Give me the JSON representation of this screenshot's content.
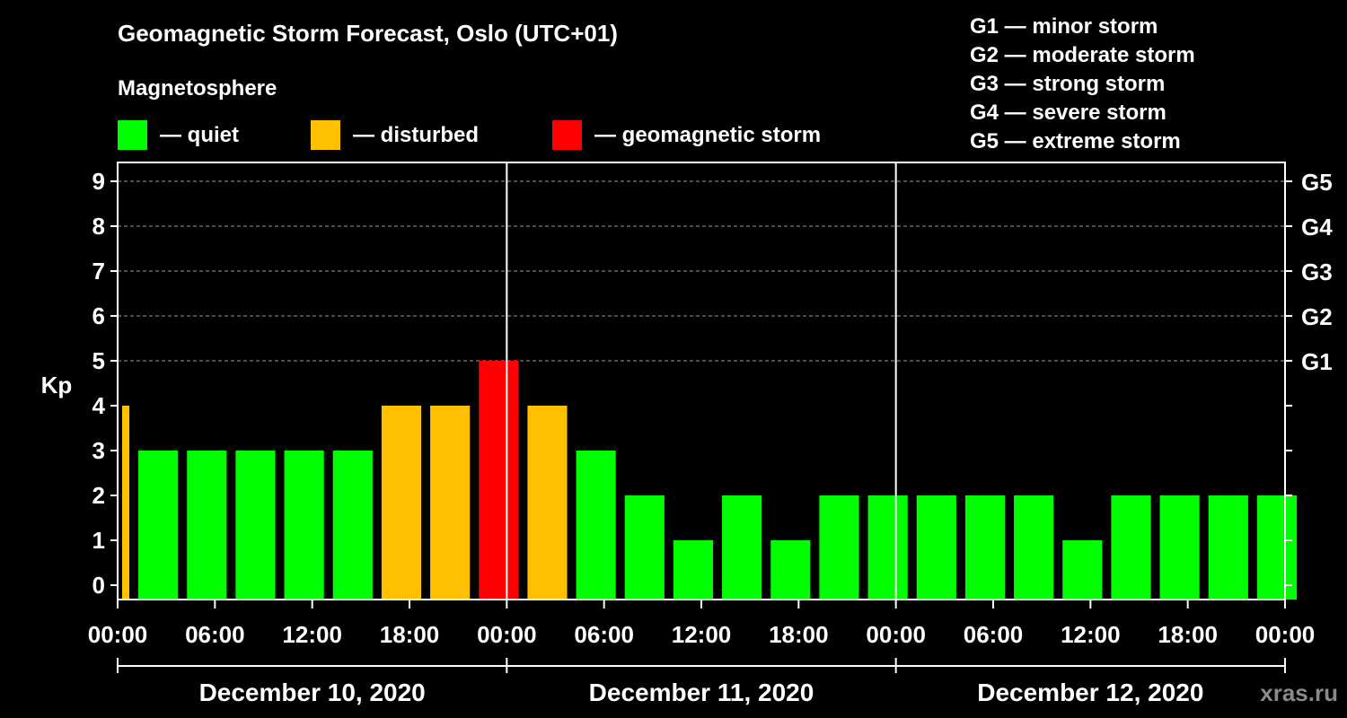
{
  "header": {
    "title": "Geomagnetic Storm Forecast, Oslo (UTC+01)",
    "legend_heading": "Magnetosphere"
  },
  "legend": [
    {
      "label": "— quiet",
      "color": "#00ff00"
    },
    {
      "label": "— disturbed",
      "color": "#ffc000"
    },
    {
      "label": "— geomagnetic storm",
      "color": "#ff0000"
    }
  ],
  "storm_scale": [
    "G1 — minor storm",
    "G2 — moderate storm",
    "G3 — strong storm",
    "G4 — severe storm",
    "G5 — extreme storm"
  ],
  "watermark": "xras.ru",
  "chart_data": {
    "type": "bar",
    "ylabel": "Kp",
    "ylim": [
      0,
      9
    ],
    "y_ticks": [
      "0",
      "1",
      "2",
      "3",
      "4",
      "5",
      "6",
      "7",
      "8",
      "9"
    ],
    "right_ticks": [
      {
        "kp": 5,
        "label": "G1"
      },
      {
        "kp": 6,
        "label": "G2"
      },
      {
        "kp": 7,
        "label": "G3"
      },
      {
        "kp": 8,
        "label": "G4"
      },
      {
        "kp": 9,
        "label": "G5"
      }
    ],
    "grid": "dashed horizontal at Kp 5–9",
    "x_tick_labels": [
      "00:00",
      "06:00",
      "12:00",
      "18:00",
      "00:00",
      "06:00",
      "12:00",
      "18:00",
      "00:00",
      "06:00",
      "12:00",
      "18:00",
      "00:00"
    ],
    "days": [
      "December 10, 2020",
      "December 11, 2020",
      "December 12, 2020"
    ],
    "bars": [
      {
        "start": "2020-12-10 00:00",
        "kp": 4,
        "level": "disturbed",
        "partial": true
      },
      {
        "start": "2020-12-10 01:00",
        "kp": 3,
        "level": "quiet"
      },
      {
        "start": "2020-12-10 04:00",
        "kp": 3,
        "level": "quiet"
      },
      {
        "start": "2020-12-10 07:00",
        "kp": 3,
        "level": "quiet"
      },
      {
        "start": "2020-12-10 10:00",
        "kp": 3,
        "level": "quiet"
      },
      {
        "start": "2020-12-10 13:00",
        "kp": 3,
        "level": "quiet"
      },
      {
        "start": "2020-12-10 16:00",
        "kp": 4,
        "level": "disturbed"
      },
      {
        "start": "2020-12-10 19:00",
        "kp": 4,
        "level": "disturbed"
      },
      {
        "start": "2020-12-10 22:00",
        "kp": 5,
        "level": "storm"
      },
      {
        "start": "2020-12-11 01:00",
        "kp": 4,
        "level": "disturbed"
      },
      {
        "start": "2020-12-11 04:00",
        "kp": 3,
        "level": "quiet"
      },
      {
        "start": "2020-12-11 07:00",
        "kp": 2,
        "level": "quiet"
      },
      {
        "start": "2020-12-11 10:00",
        "kp": 1,
        "level": "quiet"
      },
      {
        "start": "2020-12-11 13:00",
        "kp": 2,
        "level": "quiet"
      },
      {
        "start": "2020-12-11 16:00",
        "kp": 1,
        "level": "quiet"
      },
      {
        "start": "2020-12-11 19:00",
        "kp": 2,
        "level": "quiet"
      },
      {
        "start": "2020-12-11 22:00",
        "kp": 2,
        "level": "quiet"
      },
      {
        "start": "2020-12-12 01:00",
        "kp": 2,
        "level": "quiet"
      },
      {
        "start": "2020-12-12 04:00",
        "kp": 2,
        "level": "quiet"
      },
      {
        "start": "2020-12-12 07:00",
        "kp": 2,
        "level": "quiet"
      },
      {
        "start": "2020-12-12 10:00",
        "kp": 1,
        "level": "quiet"
      },
      {
        "start": "2020-12-12 13:00",
        "kp": 2,
        "level": "quiet"
      },
      {
        "start": "2020-12-12 16:00",
        "kp": 2,
        "level": "quiet"
      },
      {
        "start": "2020-12-12 19:00",
        "kp": 2,
        "level": "quiet"
      },
      {
        "start": "2020-12-12 22:00",
        "kp": 2,
        "level": "quiet"
      }
    ],
    "level_colors": {
      "quiet": "#00ff00",
      "disturbed": "#ffc000",
      "storm": "#ff0000"
    }
  }
}
